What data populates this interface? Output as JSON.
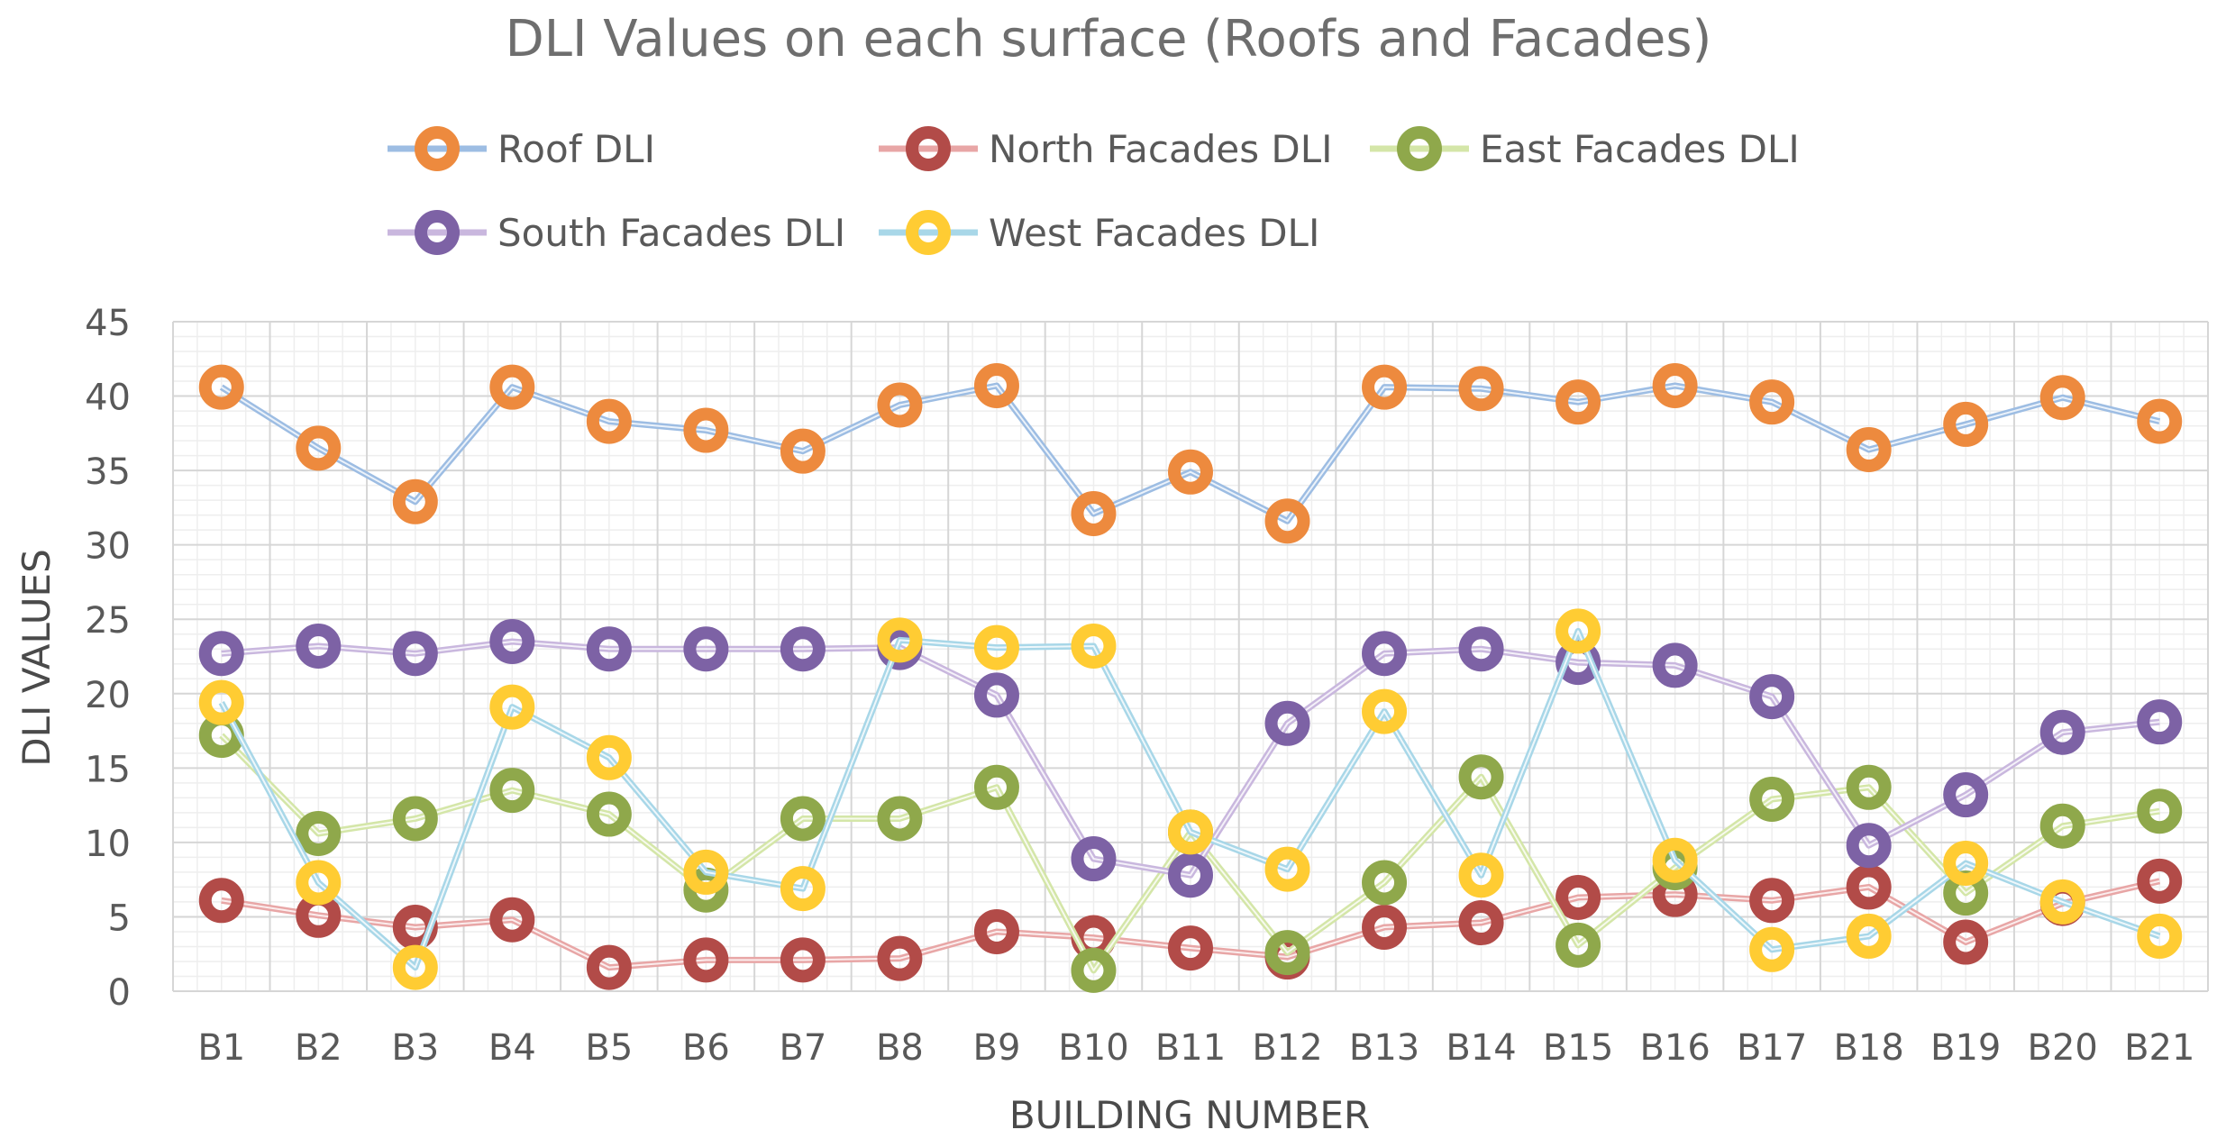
{
  "chart_data": {
    "type": "line",
    "title": "DLI Values on each surface (Roofs and Facades)",
    "xlabel": "BUILDING NUMBER",
    "ylabel": "DLI VALUES",
    "ylim": [
      0,
      45
    ],
    "yticks": [
      0,
      5,
      10,
      15,
      20,
      25,
      30,
      35,
      40,
      45
    ],
    "grid": true,
    "legend_position": "top",
    "categories": [
      "B1",
      "B2",
      "B3",
      "B4",
      "B5",
      "B6",
      "B7",
      "B8",
      "B9",
      "B10",
      "B11",
      "B12",
      "B13",
      "B14",
      "B15",
      "B16",
      "B17",
      "B18",
      "B19",
      "B20",
      "B21"
    ],
    "series": [
      {
        "name": "Roof DLI",
        "line_color": "#9DBDE3",
        "marker_color": "#ED8A3E",
        "values": [
          40.6,
          36.5,
          32.9,
          40.6,
          38.3,
          37.7,
          36.3,
          39.4,
          40.7,
          32.1,
          34.9,
          31.6,
          40.6,
          40.5,
          39.6,
          40.7,
          39.6,
          36.4,
          38.1,
          39.9,
          38.3
        ]
      },
      {
        "name": "North Facades DLI",
        "line_color": "#E8A6A6",
        "marker_color": "#B24B48",
        "values": [
          6.1,
          5.1,
          4.3,
          4.8,
          1.6,
          2.1,
          2.1,
          2.2,
          4.0,
          3.6,
          2.9,
          2.3,
          4.3,
          4.6,
          6.3,
          6.5,
          6.1,
          7.0,
          3.3,
          5.9,
          7.4
        ]
      },
      {
        "name": "East Facades DLI",
        "line_color": "#D4E6A8",
        "marker_color": "#8FA84B",
        "values": [
          17.2,
          10.6,
          11.6,
          13.5,
          11.9,
          6.8,
          11.6,
          11.6,
          13.7,
          1.4,
          10.7,
          2.6,
          7.3,
          14.4,
          3.1,
          8.3,
          12.9,
          13.7,
          6.6,
          11.1,
          12.1
        ]
      },
      {
        "name": "South Facades DLI",
        "line_color": "#C9B7DE",
        "marker_color": "#7D62A5",
        "values": [
          22.7,
          23.2,
          22.7,
          23.5,
          23.0,
          23.0,
          23.0,
          23.1,
          19.9,
          8.9,
          7.8,
          18.0,
          22.7,
          23.0,
          22.1,
          21.9,
          19.8,
          9.8,
          13.2,
          17.4,
          18.1
        ]
      },
      {
        "name": "West Facades DLI",
        "line_color": "#A8D7E8",
        "marker_color": "#FFCC33",
        "values": [
          19.4,
          7.3,
          1.6,
          19.1,
          15.7,
          8.0,
          6.9,
          23.6,
          23.1,
          23.2,
          10.7,
          8.2,
          18.8,
          7.8,
          24.2,
          8.8,
          2.8,
          3.7,
          8.6,
          6.0,
          3.7
        ]
      }
    ]
  }
}
